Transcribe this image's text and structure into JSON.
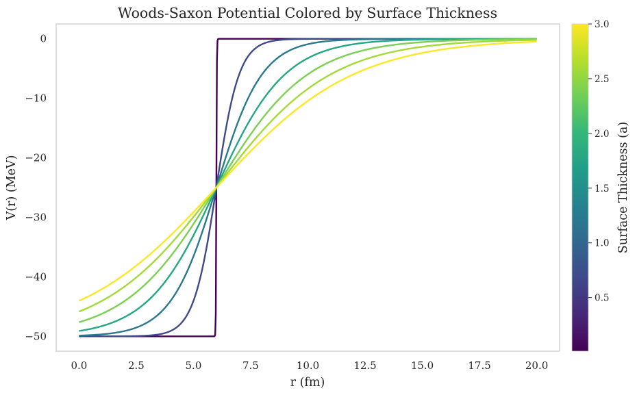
{
  "chart_data": {
    "type": "line",
    "title": "Woods-Saxon Potential Colored by Surface Thickness",
    "xlabel": "r (fm)",
    "ylabel": "V(r) (MeV)",
    "xlim": [
      -1.0,
      21.0
    ],
    "ylim": [
      -52.5,
      2.5
    ],
    "xticks": [
      0.0,
      2.5,
      5.0,
      7.5,
      10.0,
      12.5,
      15.0,
      17.5,
      20.0
    ],
    "xtick_labels": [
      "0.0",
      "2.5",
      "5.0",
      "7.5",
      "10.0",
      "12.5",
      "15.0",
      "17.5",
      "20.0"
    ],
    "yticks": [
      0,
      -10,
      -20,
      -30,
      -40,
      -50
    ],
    "ytick_labels": [
      "0",
      "−10",
      "−20",
      "−30",
      "−40",
      "−50"
    ],
    "grid": false,
    "model": {
      "V0": -50,
      "R": 6.0,
      "r_range": [
        0,
        20
      ]
    },
    "series": [
      {
        "a": 0.01,
        "color": "#440154"
      },
      {
        "a": 0.5,
        "color": "#3e4a89"
      },
      {
        "a": 1.0,
        "color": "#2a788e"
      },
      {
        "a": 1.5,
        "color": "#22a884"
      },
      {
        "a": 2.0,
        "color": "#7ad151"
      },
      {
        "a": 2.5,
        "color": "#a2da37"
      },
      {
        "a": 3.0,
        "color": "#fde725"
      }
    ],
    "colorbar": {
      "label": "Surface Thickness (a)",
      "range": [
        0.01,
        3.0
      ],
      "ticks": [
        0.5,
        1.0,
        1.5,
        2.0,
        2.5,
        3.0
      ],
      "tick_labels": [
        "0.5",
        "1.0",
        "1.5",
        "2.0",
        "2.5",
        "3.0"
      ],
      "colormap": [
        "#440154",
        "#482878",
        "#3e4989",
        "#31688e",
        "#26828e",
        "#1f9e89",
        "#35b779",
        "#6ece58",
        "#b5de2b",
        "#fde725"
      ]
    }
  }
}
